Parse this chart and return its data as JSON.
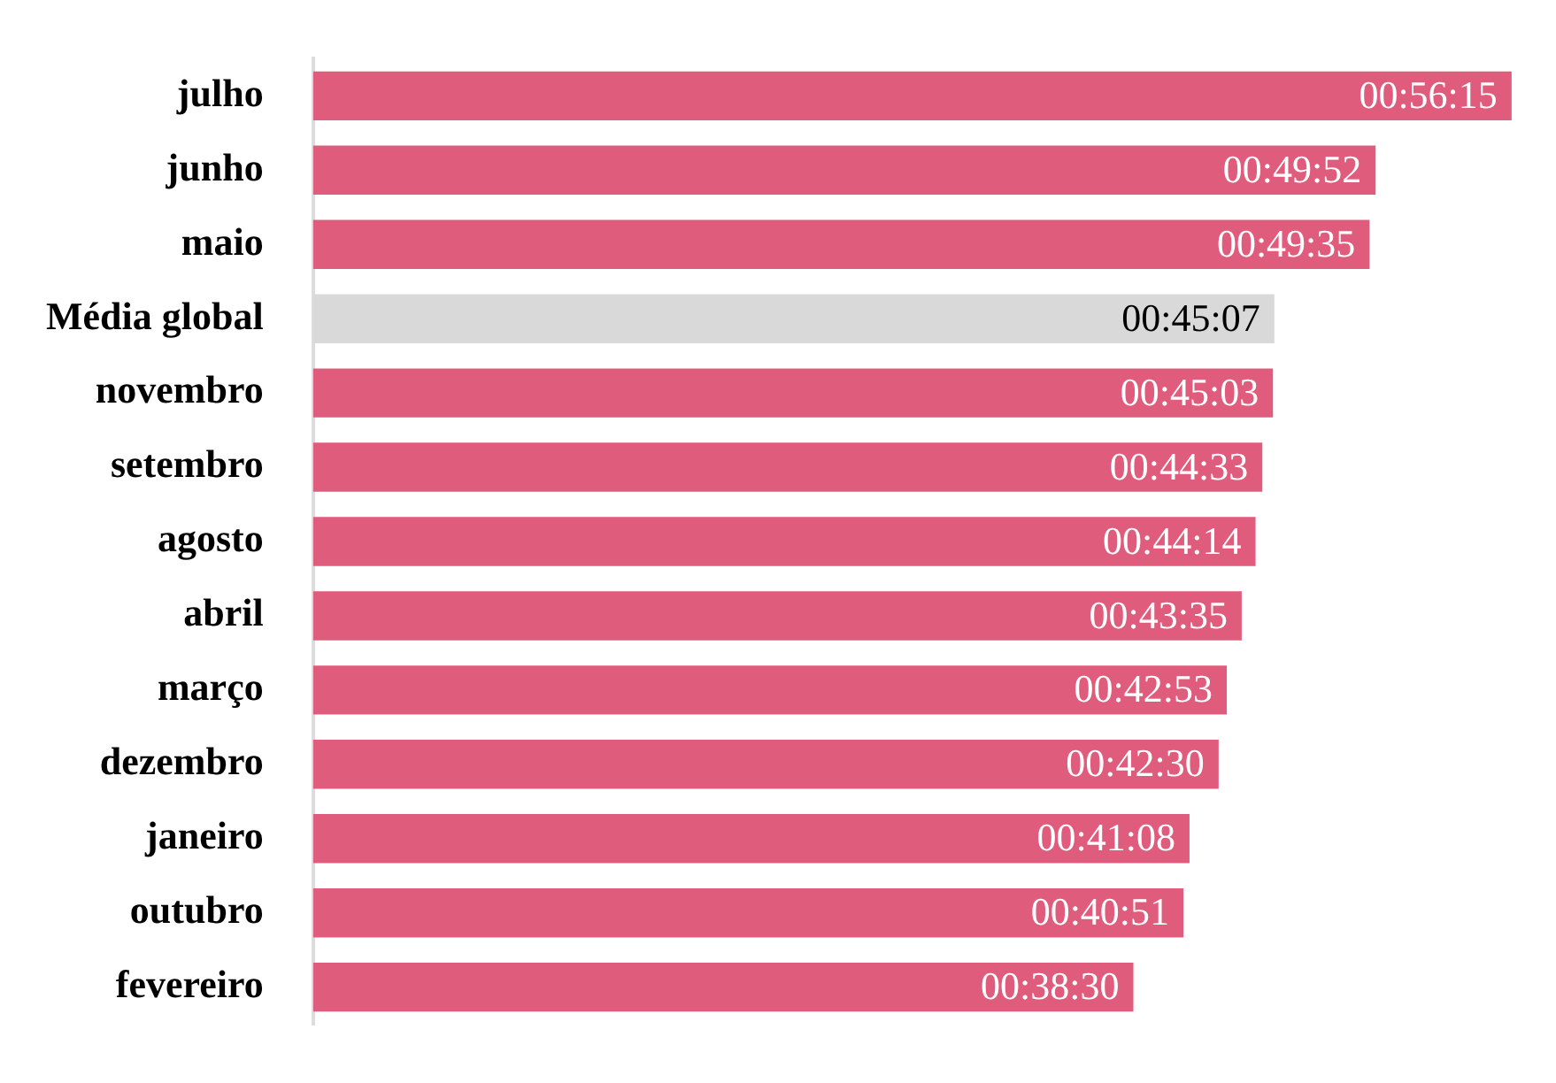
{
  "chart_data": {
    "type": "bar",
    "orientation": "horizontal",
    "categories": [
      "julho",
      "junho",
      "maio",
      "Média global",
      "novembro",
      "setembro",
      "agosto",
      "abril",
      "março",
      "dezembro",
      "janeiro",
      "outubro",
      "fevereiro"
    ],
    "values": [
      3375,
      2992,
      2975,
      2707,
      2703,
      2673,
      2654,
      2615,
      2573,
      2550,
      2468,
      2451,
      2310
    ],
    "value_labels": [
      "00:56:15",
      "00:49:52",
      "00:49:35",
      "00:45:07",
      "00:45:03",
      "00:44:33",
      "00:44:14",
      "00:43:35",
      "00:42:53",
      "00:42:30",
      "00:41:08",
      "00:40:51",
      "00:38:30"
    ],
    "colors": [
      "#e05c7c",
      "#e05c7c",
      "#e05c7c",
      "#d9d9d9",
      "#e05c7c",
      "#e05c7c",
      "#e05c7c",
      "#e05c7c",
      "#e05c7c",
      "#e05c7c",
      "#e05c7c",
      "#e05c7c",
      "#e05c7c"
    ],
    "legend": false
  }
}
